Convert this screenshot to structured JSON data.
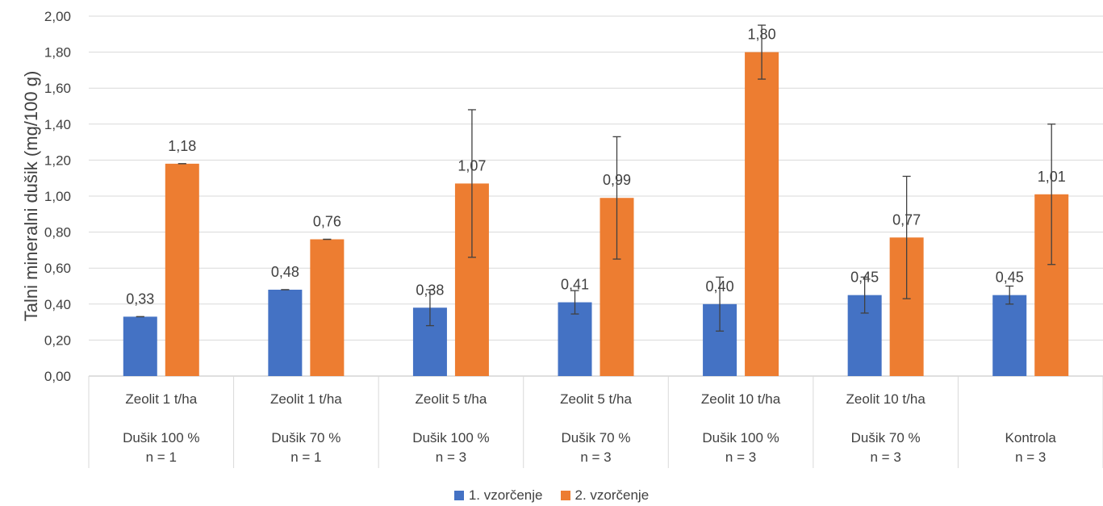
{
  "chart_data": {
    "type": "bar",
    "title": "",
    "ylabel": "Talni mineralni dušik (mg/100 g)",
    "xlabel": "",
    "ylim": [
      0,
      2.0
    ],
    "yticks": [
      "0,00",
      "0,20",
      "0,40",
      "0,60",
      "0,80",
      "1,00",
      "1,20",
      "1,40",
      "1,60",
      "1,80",
      "2,00"
    ],
    "grid": true,
    "legend_position": "bottom",
    "categories": [
      {
        "line1": "Zeolit 1 t/ha",
        "line2": "Dušik 100 %",
        "line3": "n = 1"
      },
      {
        "line1": "Zeolit 1 t/ha",
        "line2": "Dušik 70 %",
        "line3": "n = 1"
      },
      {
        "line1": "Zeolit 5 t/ha",
        "line2": "Dušik 100 %",
        "line3": "n = 3"
      },
      {
        "line1": "Zeolit 5 t/ha",
        "line2": "Dušik 70 %",
        "line3": "n = 3"
      },
      {
        "line1": "Zeolit 10 t/ha",
        "line2": "Dušik 100 %",
        "line3": "n = 3"
      },
      {
        "line1": "Zeolit 10 t/ha",
        "line2": "Dušik 70 %",
        "line3": "n = 3"
      },
      {
        "line1": "",
        "line2": "Kontrola",
        "line3": "n = 3"
      }
    ],
    "series": [
      {
        "name": "1. vzorčenje",
        "color": "#4472C4",
        "values": [
          0.33,
          0.48,
          0.38,
          0.41,
          0.4,
          0.45,
          0.45
        ],
        "labels": [
          "0,33",
          "0,48",
          "0,38",
          "0,41",
          "0,40",
          "0,45",
          "0,45"
        ],
        "error": [
          0.0,
          0.0,
          0.1,
          0.065,
          0.15,
          0.1,
          0.05
        ]
      },
      {
        "name": "2. vzorčenje",
        "color": "#ED7D31",
        "values": [
          1.18,
          0.76,
          1.07,
          0.99,
          1.8,
          0.77,
          1.01
        ],
        "labels": [
          "1,18",
          "0,76",
          "1,07",
          "0,99",
          "1,80",
          "0,77",
          "1,01"
        ],
        "error": [
          0.0,
          0.0,
          0.41,
          0.34,
          0.15,
          0.34,
          0.39
        ]
      }
    ]
  }
}
